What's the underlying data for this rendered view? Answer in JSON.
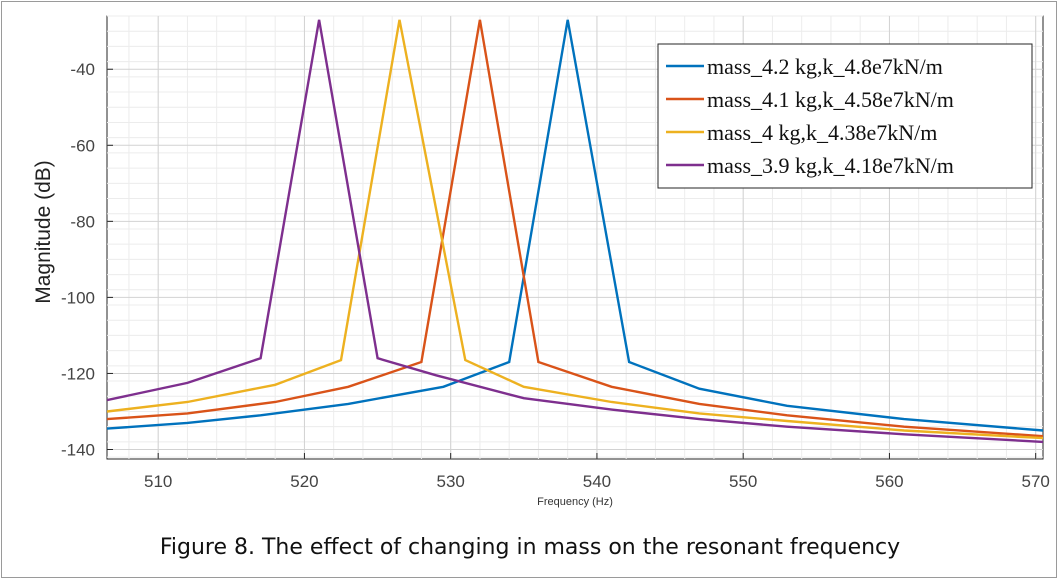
{
  "caption": "Figure 8. The effect of changing in mass on the resonant frequency",
  "chart_data": {
    "type": "line",
    "title": "",
    "xlabel": "Frequency (Hz)",
    "ylabel": "Magnitude (dB)",
    "xlim": [
      506.5,
      570.5
    ],
    "ylim": [
      -142.5,
      -26
    ],
    "xticks": [
      510,
      520,
      530,
      540,
      550,
      560,
      570
    ],
    "xtick_labels": [
      "510",
      "520",
      "530",
      "540",
      "550",
      "560",
      "570"
    ],
    "yticks": [
      -40,
      -60,
      -80,
      -100,
      -120,
      -140
    ],
    "ytick_labels": [
      "-40",
      "-60",
      "-80",
      "-100",
      "-120",
      "-140"
    ],
    "grid": true,
    "legend_position": "top-right",
    "series": [
      {
        "name": "mass_4.2 kg,k_4.8e7kN/m",
        "color": "#0072BD",
        "x": [
          506.5,
          512,
          517,
          523,
          529.5,
          534,
          538,
          542.2,
          547,
          553,
          561,
          570.5
        ],
        "y": [
          -134.5,
          -133,
          -131,
          -128,
          -123.5,
          -117,
          -27,
          -117,
          -124,
          -128.5,
          -132,
          -135
        ]
      },
      {
        "name": "mass_4.1 kg,k_4.58e7kN/m",
        "color": "#D95319",
        "x": [
          506.5,
          512,
          518,
          523,
          528,
          532,
          536,
          541,
          547,
          553,
          561,
          570.5
        ],
        "y": [
          -132,
          -130.5,
          -127.5,
          -123.5,
          -117,
          -27,
          -117,
          -123.5,
          -128,
          -131,
          -134,
          -136.5
        ]
      },
      {
        "name": "mass_4 kg,k_4.38e7kN/m",
        "color": "#EDB120",
        "x": [
          506.5,
          512,
          518,
          522.5,
          526.5,
          531,
          535,
          541,
          547,
          553,
          561,
          570.5
        ],
        "y": [
          -130,
          -127.5,
          -123,
          -116.5,
          -27,
          -116.5,
          -123.5,
          -127.5,
          -130.5,
          -132.5,
          -135,
          -137
        ]
      },
      {
        "name": "mass_3.9 kg,k_4.18e7kN/m",
        "color": "#7E2F8E",
        "x": [
          506.5,
          512,
          517,
          521,
          525,
          529,
          535,
          541,
          547,
          553,
          561,
          570.5
        ],
        "y": [
          -127,
          -122.5,
          -116,
          -27,
          -116,
          -120.5,
          -126.5,
          -129.5,
          -132,
          -134,
          -136,
          -138
        ]
      }
    ]
  }
}
